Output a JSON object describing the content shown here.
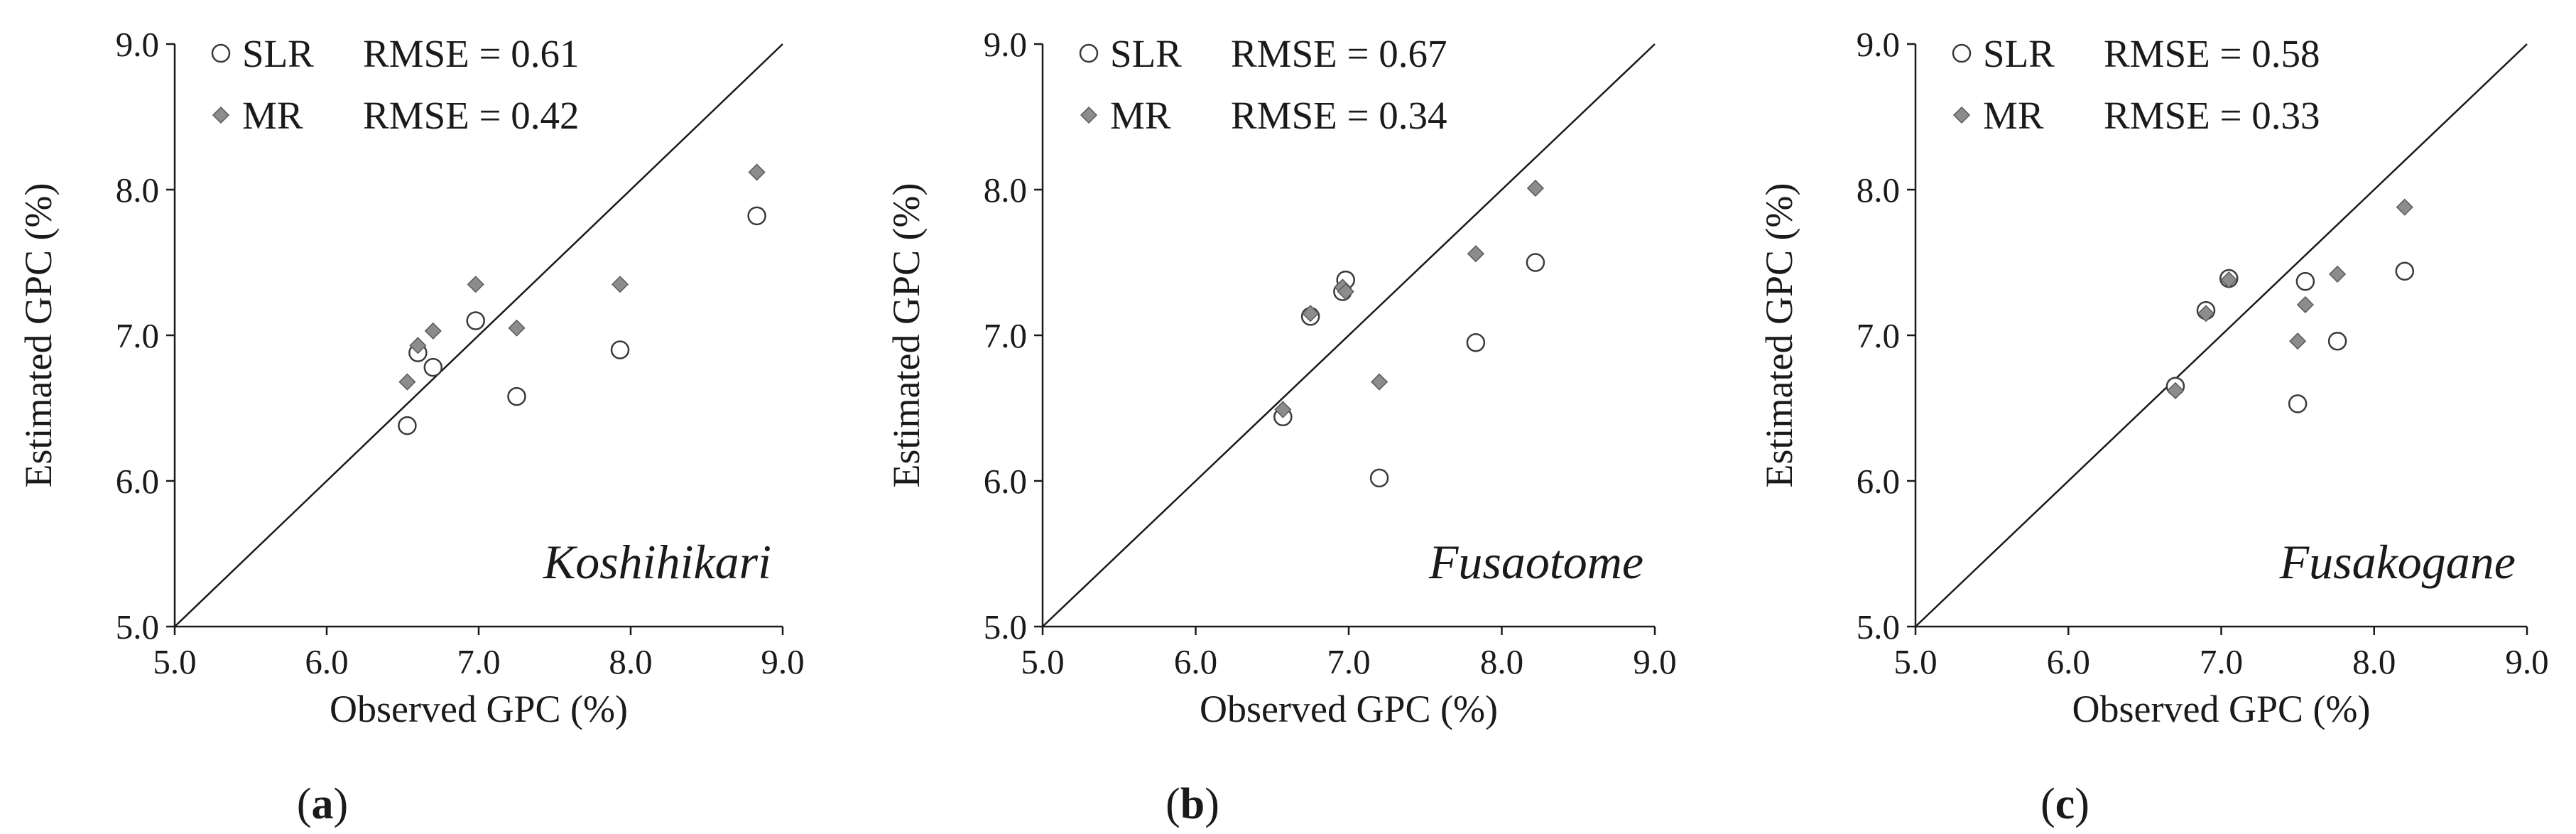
{
  "chart_data": [
    {
      "type": "scatter",
      "panel_label_open": "(",
      "panel_letter": "a",
      "panel_label_close": ")",
      "variety": "Koshihikari",
      "xlabel": "Observed GPC (%)",
      "ylabel": "Estimated GPC (%)",
      "xlim": [
        5.0,
        9.0
      ],
      "ylim": [
        5.0,
        9.0
      ],
      "x_ticks": [
        "5.0",
        "6.0",
        "7.0",
        "8.0",
        "9.0"
      ],
      "y_ticks": [
        "5.0",
        "6.0",
        "7.0",
        "8.0",
        "9.0"
      ],
      "reference_line": "1:1",
      "legend_position": "top-left",
      "series": [
        {
          "name": "SLR",
          "rmse_label": "RMSE = 0.61",
          "marker": "open-circle",
          "x": [
            6.53,
            6.6,
            6.7,
            6.98,
            7.25,
            7.93,
            8.83
          ],
          "y": [
            6.38,
            6.88,
            6.78,
            7.1,
            6.58,
            6.9,
            7.82
          ]
        },
        {
          "name": "MR",
          "rmse_label": "RMSE = 0.42",
          "marker": "gray-diamond",
          "x": [
            6.53,
            6.6,
            6.7,
            6.98,
            7.25,
            7.93,
            8.83
          ],
          "y": [
            6.68,
            6.93,
            7.03,
            7.35,
            7.05,
            7.35,
            8.12
          ]
        }
      ]
    },
    {
      "type": "scatter",
      "panel_label_open": "(",
      "panel_letter": "b",
      "panel_label_close": ")",
      "variety": "Fusaotome",
      "xlabel": "Observed GPC (%)",
      "ylabel": "Estimated GPC (%)",
      "xlim": [
        5.0,
        9.0
      ],
      "ylim": [
        5.0,
        9.0
      ],
      "x_ticks": [
        "5.0",
        "6.0",
        "7.0",
        "8.0",
        "9.0"
      ],
      "y_ticks": [
        "5.0",
        "6.0",
        "7.0",
        "8.0",
        "9.0"
      ],
      "reference_line": "1:1",
      "legend_position": "top-left",
      "series": [
        {
          "name": "SLR",
          "rmse_label": "RMSE = 0.67",
          "marker": "open-circle",
          "x": [
            6.57,
            6.75,
            6.96,
            6.98,
            7.2,
            7.83,
            8.22
          ],
          "y": [
            6.44,
            7.13,
            7.3,
            7.38,
            6.02,
            6.95,
            7.5
          ]
        },
        {
          "name": "MR",
          "rmse_label": "RMSE = 0.34",
          "marker": "gray-diamond",
          "x": [
            6.57,
            6.75,
            6.96,
            6.98,
            7.2,
            7.83,
            8.22
          ],
          "y": [
            6.49,
            7.15,
            7.33,
            7.3,
            6.68,
            7.56,
            8.01
          ]
        }
      ]
    },
    {
      "type": "scatter",
      "panel_label_open": "(",
      "panel_letter": "c",
      "panel_label_close": ")",
      "variety": "Fusakogane",
      "xlabel": "Observed GPC (%)",
      "ylabel": "Estimated GPC (%)",
      "xlim": [
        5.0,
        9.0
      ],
      "ylim": [
        5.0,
        9.0
      ],
      "x_ticks": [
        "5.0",
        "6.0",
        "7.0",
        "8.0",
        "9.0"
      ],
      "y_ticks": [
        "5.0",
        "6.0",
        "7.0",
        "8.0",
        "9.0"
      ],
      "reference_line": "1:1",
      "legend_position": "top-left",
      "series": [
        {
          "name": "SLR",
          "rmse_label": "RMSE = 0.58",
          "marker": "open-circle",
          "x": [
            6.7,
            6.9,
            7.05,
            7.5,
            7.55,
            7.76,
            8.2
          ],
          "y": [
            6.65,
            7.17,
            7.39,
            6.53,
            7.37,
            6.96,
            7.44
          ]
        },
        {
          "name": "MR",
          "rmse_label": "RMSE = 0.33",
          "marker": "gray-diamond",
          "x": [
            6.7,
            6.9,
            7.05,
            7.5,
            7.55,
            7.76,
            8.2
          ],
          "y": [
            6.62,
            7.15,
            7.38,
            6.96,
            7.21,
            7.42,
            7.88
          ]
        }
      ]
    }
  ],
  "colors": {
    "axis": "#1a1a1a",
    "slr_marker_fill": "#ffffff",
    "slr_marker_stroke": "#3a3a3a",
    "mr_marker_fill": "#8c8c8c",
    "mr_marker_stroke": "#5a5a5a"
  }
}
